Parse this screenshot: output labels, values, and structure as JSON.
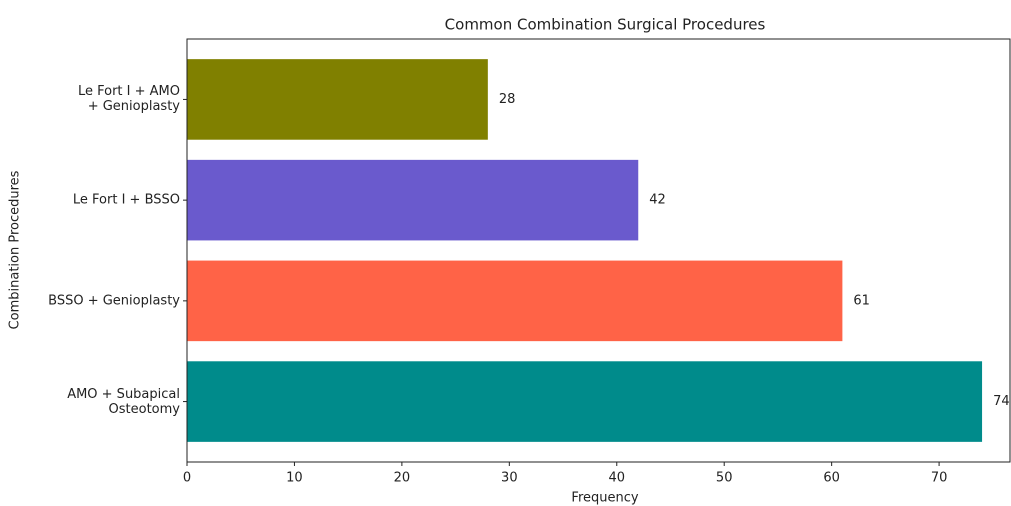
{
  "chart_data": {
    "type": "barh",
    "title": "Common Combination Surgical Procedures",
    "xlabel": "Frequency",
    "ylabel": "Combination Procedures",
    "categories": [
      "AMO + Subapical\nOsteotomy",
      "BSSO + Genioplasty",
      "Le Fort I + BSSO",
      "Le Fort I + AMO\n+ Genioplasty"
    ],
    "values": [
      74,
      61,
      42,
      28
    ],
    "colors": [
      "#008b8b",
      "#ff6347",
      "#6a5acd",
      "#808000"
    ],
    "xlim": [
      0,
      76.6
    ],
    "xticks": [
      0,
      10,
      20,
      30,
      40,
      50,
      60,
      70
    ]
  }
}
